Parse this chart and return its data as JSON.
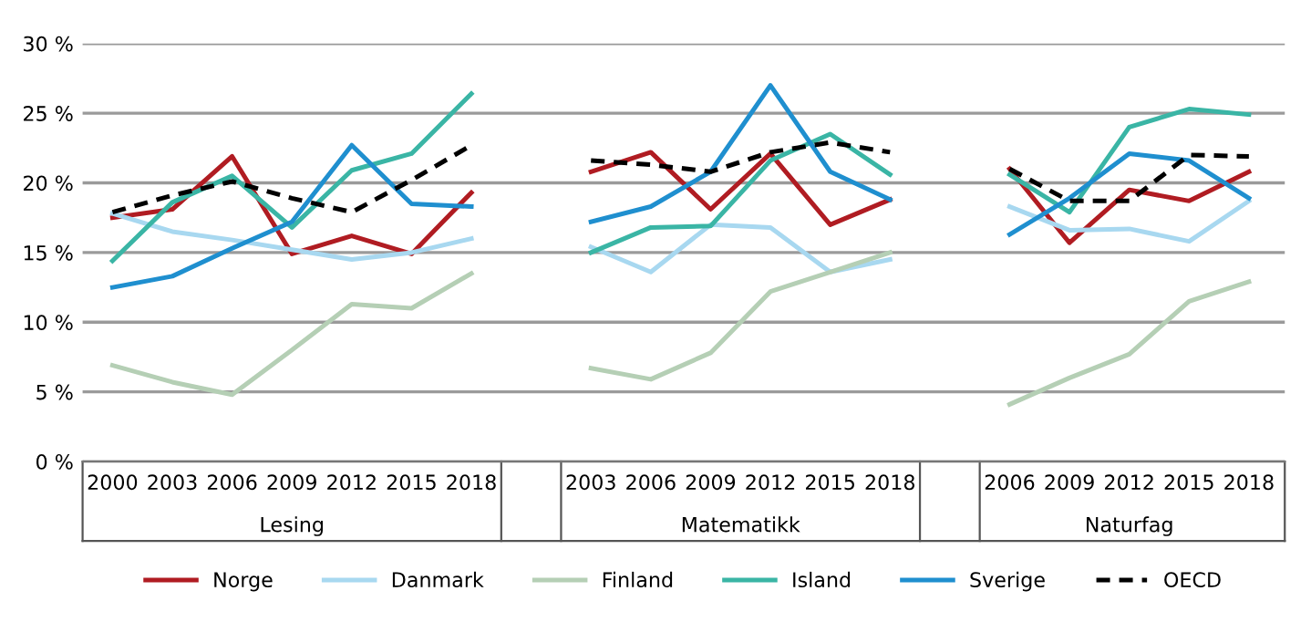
{
  "chart_data": {
    "type": "line",
    "categories": [
      "2000",
      "2003",
      "2006",
      "2009",
      "2012",
      "2015",
      "2018",
      null,
      "2003",
      "2006",
      "2009",
      "2012",
      "2015",
      "2018",
      null,
      "2006",
      "2009",
      "2012",
      "2015",
      "2018"
    ],
    "series": [
      {
        "name": "Norge",
        "color": "#b01c22",
        "values": [
          17.5,
          18.1,
          21.9,
          14.9,
          16.2,
          14.9,
          19.3,
          null,
          20.8,
          22.2,
          18.1,
          22.1,
          17.0,
          18.8,
          null,
          21.0,
          15.7,
          19.5,
          18.7,
          20.8
        ]
      },
      {
        "name": "Danmark",
        "color": "#a8d8f0",
        "values": [
          17.8,
          16.5,
          15.9,
          15.2,
          14.5,
          15.0,
          16.0,
          null,
          15.4,
          13.6,
          17.0,
          16.8,
          13.6,
          14.5,
          null,
          18.3,
          16.6,
          16.7,
          15.8,
          18.7
        ]
      },
      {
        "name": "Finland",
        "color": "#b5cfb5",
        "values": [
          6.9,
          5.7,
          4.8,
          8.0,
          11.3,
          11.0,
          13.5,
          null,
          6.7,
          5.9,
          7.8,
          12.2,
          13.6,
          15.0,
          null,
          4.1,
          6.0,
          7.7,
          11.5,
          12.9
        ]
      },
      {
        "name": "Island",
        "color": "#3ab5a5",
        "values": [
          14.4,
          18.6,
          20.5,
          16.8,
          20.9,
          22.1,
          26.4,
          null,
          15.0,
          16.8,
          16.9,
          21.6,
          23.5,
          20.6,
          null,
          20.6,
          17.9,
          24.0,
          25.3,
          24.9
        ]
      },
      {
        "name": "Sverige",
        "color": "#1f8fcf",
        "values": [
          12.5,
          13.3,
          15.3,
          17.2,
          22.7,
          18.5,
          18.3,
          null,
          17.2,
          18.3,
          20.8,
          27.0,
          20.8,
          18.8,
          null,
          16.3,
          18.9,
          22.1,
          21.6,
          18.9
        ]
      },
      {
        "name": "OECD",
        "color": "#000000",
        "line_style": "dashed",
        "values": [
          17.9,
          19.1,
          20.1,
          18.9,
          17.9,
          20.2,
          22.7,
          null,
          21.6,
          21.3,
          20.8,
          22.2,
          22.9,
          22.2,
          null,
          21.0,
          18.7,
          18.7,
          22.0,
          21.9
        ]
      }
    ],
    "annotations": [
      "Lesing",
      "Matematikk",
      "Naturfag"
    ],
    "ylim": [
      0,
      30
    ],
    "yticks": [
      {
        "value": 0,
        "label": "0 %"
      },
      {
        "value": 5,
        "label": "5 %"
      },
      {
        "value": 10,
        "label": "10 %"
      },
      {
        "value": 15,
        "label": "15 %"
      },
      {
        "value": 20,
        "label": "20 %"
      },
      {
        "value": 25,
        "label": "25 %"
      },
      {
        "value": 30,
        "label": "30 %"
      }
    ],
    "grid": "y",
    "legend": "bottom",
    "marker": "none"
  }
}
